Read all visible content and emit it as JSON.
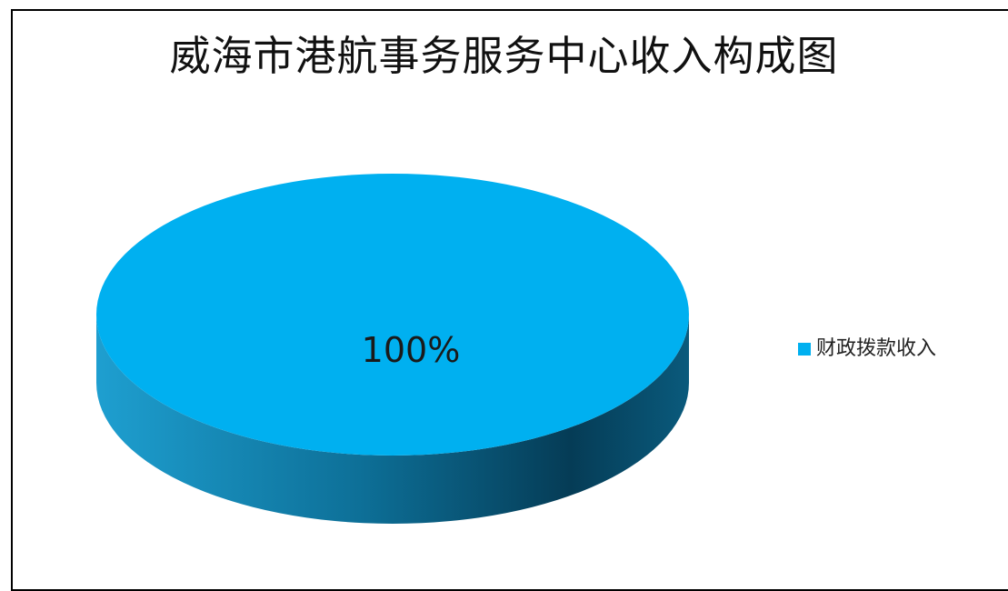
{
  "chart_data": {
    "type": "pie",
    "title": "威海市港航事务服务中心收入构成图",
    "categories": [
      "财政拨款收入"
    ],
    "values": [
      100
    ],
    "data_labels": [
      "100%"
    ],
    "colors": {
      "top": "#00b0f0",
      "side_light": "#1a9fd0",
      "side_dark": "#003e58"
    },
    "legend": {
      "position": "right",
      "items": [
        {
          "label": "财政拨款收入",
          "color": "#00b0f0"
        }
      ]
    }
  }
}
